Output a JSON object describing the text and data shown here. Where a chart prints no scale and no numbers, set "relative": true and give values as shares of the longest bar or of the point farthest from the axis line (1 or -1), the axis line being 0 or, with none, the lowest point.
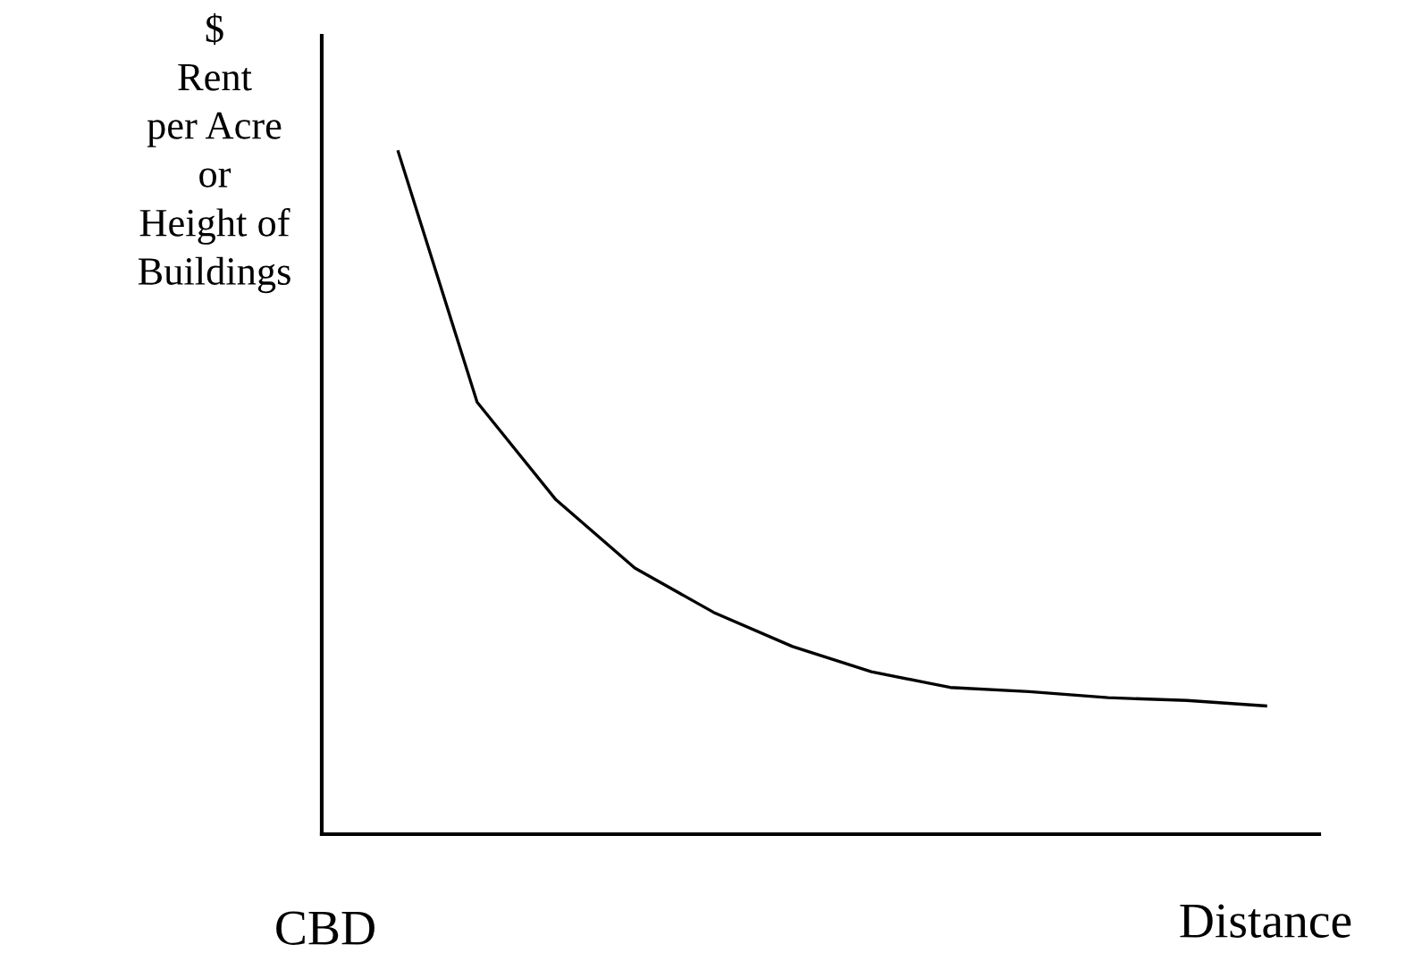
{
  "chart_data": {
    "type": "line",
    "relative": true,
    "ylabel": "$\nRent\nper Acre\nor\nHeight of\nBuildings",
    "xlabel": "Distance",
    "annotations": [
      "CBD"
    ],
    "categories": [
      null,
      null,
      null,
      null,
      null,
      null,
      null,
      null,
      null,
      null,
      null,
      null
    ],
    "series": [
      {
        "color": "#000000",
        "values": [
          1.0,
          0.633,
          0.49,
          0.39,
          0.325,
          0.275,
          0.238,
          0.215,
          0.209,
          0.2,
          0.196,
          0.188
        ]
      }
    ],
    "legend": false,
    "marker": "none",
    "line_style": "solid"
  }
}
